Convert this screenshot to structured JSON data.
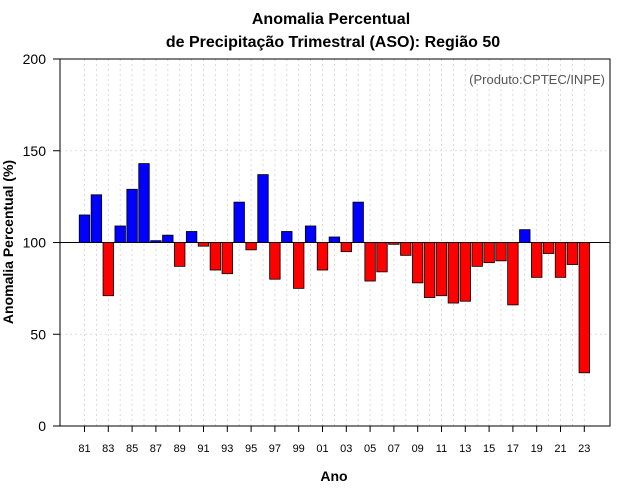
{
  "chart_data": {
    "type": "bar",
    "title": "Anomalia Percentual",
    "subtitle": "de Precipitação Trimestral (ASO): Região 50",
    "xlabel": "Ano",
    "ylabel": "Anomalia Percentual (%)",
    "annotation": "(Produto:CPTEC/INPE)",
    "ylim": [
      0,
      200
    ],
    "yticks": [
      0,
      50,
      100,
      150,
      200
    ],
    "baseline": 100,
    "colors": {
      "above": "#0000ff",
      "below": "#ff0000",
      "outline": "#000000"
    },
    "grid": true,
    "categories": [
      "81",
      "82",
      "83",
      "84",
      "85",
      "86",
      "87",
      "88",
      "89",
      "90",
      "91",
      "92",
      "93",
      "94",
      "95",
      "96",
      "97",
      "98",
      "99",
      "00",
      "01",
      "02",
      "03",
      "04",
      "05",
      "06",
      "07",
      "08",
      "09",
      "10",
      "11",
      "12",
      "13",
      "14",
      "15",
      "16",
      "17",
      "18",
      "19",
      "20",
      "21",
      "22",
      "23"
    ],
    "tick_labels": [
      "81",
      "83",
      "85",
      "87",
      "89",
      "91",
      "93",
      "95",
      "97",
      "99",
      "01",
      "03",
      "05",
      "07",
      "09",
      "11",
      "13",
      "15",
      "17",
      "19",
      "21",
      "23"
    ],
    "values": [
      115,
      126,
      71,
      109,
      129,
      143,
      101,
      104,
      87,
      106,
      98,
      85,
      83,
      122,
      96,
      137,
      80,
      106,
      75,
      109,
      85,
      103,
      95,
      122,
      79,
      84,
      99,
      93,
      78,
      70,
      71,
      67,
      68,
      87,
      89,
      90,
      66,
      107,
      81,
      94,
      81,
      88,
      29
    ]
  }
}
